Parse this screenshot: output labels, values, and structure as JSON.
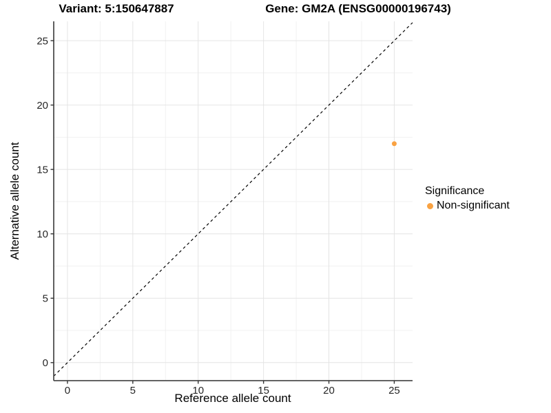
{
  "titles": {
    "variant": "Variant: 5:150647887",
    "gene": "Gene: GM2A (ENSG00000196743)"
  },
  "axes": {
    "x_label": "Reference allele count",
    "y_label": "Alternative allele count"
  },
  "legend": {
    "title": "Significance",
    "items": [
      {
        "label": "Non-significant",
        "color": "#F9A242"
      }
    ]
  },
  "chart_data": {
    "type": "scatter",
    "title": "Variant: 5:150647887 — Gene: GM2A (ENSG00000196743)",
    "xlabel": "Reference allele count",
    "ylabel": "Alternative allele count",
    "xlim": [
      -1.05,
      26.4
    ],
    "ylim": [
      -1.4,
      26.5
    ],
    "x_ticks": [
      0,
      5,
      10,
      15,
      20,
      25
    ],
    "y_ticks": [
      0,
      5,
      10,
      15,
      20,
      25
    ],
    "grid": true,
    "legend_position": "right",
    "identity_line": {
      "type": "y=x",
      "style": "dashed",
      "color": "#000000"
    },
    "series": [
      {
        "name": "Non-significant",
        "color": "#F9A242",
        "points": [
          {
            "x": 25,
            "y": 17
          }
        ]
      }
    ],
    "point_radius": 3.5,
    "colors": {
      "grid_major": "#E4E4E4",
      "grid_minor": "#F1F1F1",
      "axis_line": "#4D4D4D",
      "tick_mark": "#333333",
      "tick_text": "#262626"
    }
  }
}
